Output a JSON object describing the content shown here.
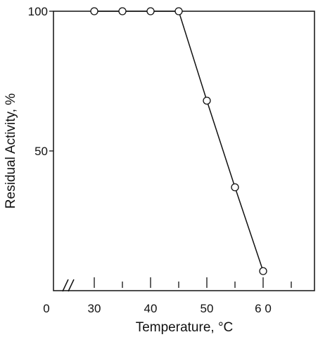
{
  "chart_data": {
    "type": "line",
    "title": "",
    "xlabel": "Temperature, °C",
    "ylabel": "Residual Activity, %",
    "x_ticks": [
      30,
      35,
      40,
      45,
      50,
      55,
      60,
      65
    ],
    "x_tick_labels": [
      {
        "value": 0,
        "text": "0"
      },
      {
        "value": 30,
        "text": "30"
      },
      {
        "value": 40,
        "text": "40"
      },
      {
        "value": 50,
        "text": "50"
      },
      {
        "value": 60,
        "text": "6 0"
      }
    ],
    "y_tick_labels": [
      {
        "value": 50,
        "text": "50"
      },
      {
        "value": 100,
        "text": "100"
      }
    ],
    "xlim": [
      22,
      70
    ],
    "ylim": [
      0,
      100
    ],
    "x_axis_break": true,
    "grid": false,
    "legend": "none",
    "marker": "open-circle",
    "line_color": "#111111",
    "series": [
      {
        "x": [
          30,
          35,
          40,
          45,
          50,
          55,
          60
        ],
        "y": [
          100,
          100,
          100,
          100,
          68,
          37,
          7
        ]
      }
    ]
  }
}
